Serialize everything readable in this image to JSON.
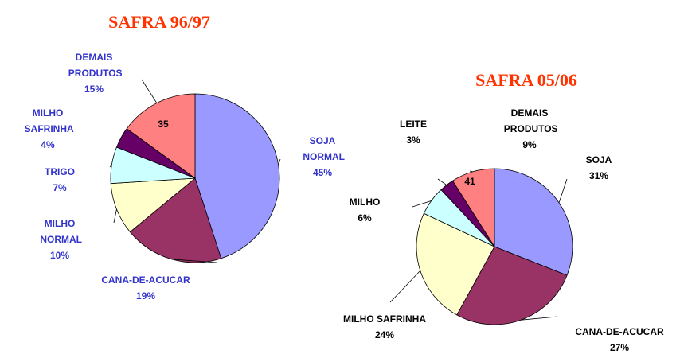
{
  "chart_data": [
    {
      "type": "pie",
      "title": "SAFRA 96/97",
      "categories": [
        "SOJA NORMAL",
        "CANA-DE-ACUCAR",
        "MILHO NORMAL",
        "TRIGO",
        "MILHO SAFRINHA",
        "DEMAIS PRODUTOS"
      ],
      "values": [
        45,
        19,
        10,
        7,
        4,
        15
      ],
      "value_labels": [
        "45%",
        "19%",
        "10%",
        "7%",
        "4%",
        "15%"
      ],
      "colors": [
        "#9999ff",
        "#993366",
        "#ffffcc",
        "#ccffff",
        "#660066",
        "#ff8080"
      ],
      "annotation": "35"
    },
    {
      "type": "pie",
      "title": "SAFRA 05/06",
      "categories": [
        "SOJA",
        "CANA-DE-ACUCAR",
        "MILHO SAFRINHA",
        "MILHO",
        "LEITE",
        "DEMAIS PRODUTOS"
      ],
      "values": [
        31,
        27,
        24,
        6,
        3,
        9
      ],
      "value_labels": [
        "31%",
        "27%",
        "24%",
        "6%",
        "3%",
        "9%"
      ],
      "colors": [
        "#9999ff",
        "#993366",
        "#ffffcc",
        "#ccffff",
        "#660066",
        "#ff8080"
      ],
      "annotation": "41"
    }
  ]
}
